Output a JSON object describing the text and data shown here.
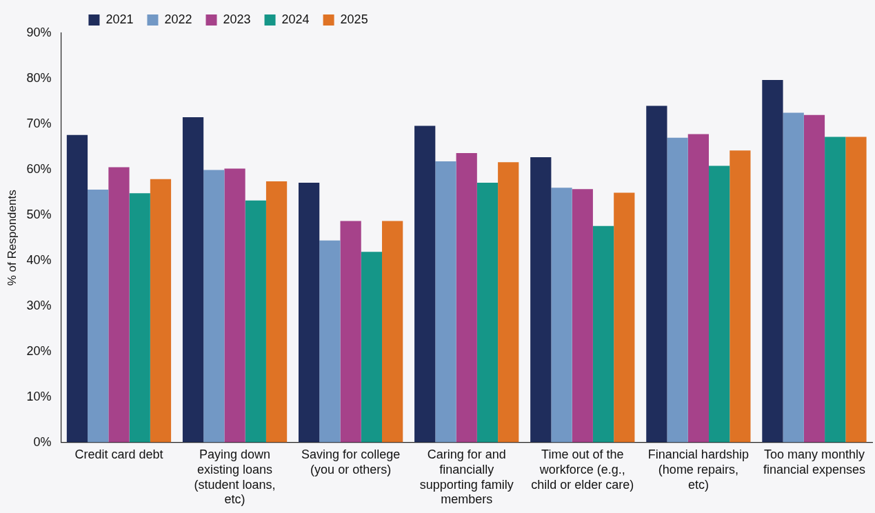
{
  "chart_data": {
    "type": "bar",
    "ylabel": "% of Respondents",
    "categories": [
      "Credit card debt",
      "Paying down existing loans (student loans, etc)",
      "Saving for college (you or others)",
      "Caring for and financially supporting family members",
      "Time out of the workforce (e.g., child or elder care)",
      "Financial hardship (home repairs, etc)",
      "Too many monthly financial expenses"
    ],
    "series": [
      {
        "name": "2021",
        "color": "#1f2d5c",
        "values": [
          67.6,
          71.5,
          57.1,
          69.6,
          62.7,
          74.0,
          79.7
        ]
      },
      {
        "name": "2022",
        "color": "#7298c5",
        "values": [
          55.6,
          59.9,
          44.4,
          61.8,
          56.0,
          67.0,
          72.5
        ]
      },
      {
        "name": "2023",
        "color": "#a6428a",
        "values": [
          60.5,
          60.2,
          48.7,
          63.6,
          55.7,
          67.8,
          72.0
        ]
      },
      {
        "name": "2024",
        "color": "#159688",
        "values": [
          54.8,
          53.2,
          41.9,
          57.1,
          47.6,
          60.8,
          67.2
        ]
      },
      {
        "name": "2025",
        "color": "#df7325",
        "values": [
          57.9,
          57.4,
          48.7,
          61.6,
          54.9,
          64.2,
          67.2
        ]
      }
    ],
    "ylim": [
      0,
      90
    ],
    "yticks": [
      {
        "value": 0,
        "label": "0%"
      },
      {
        "value": 10,
        "label": "10%"
      },
      {
        "value": 20,
        "label": "20%"
      },
      {
        "value": 30,
        "label": "30%"
      },
      {
        "value": 40,
        "label": "40%"
      },
      {
        "value": 50,
        "label": "50%"
      },
      {
        "value": 60,
        "label": "60%"
      },
      {
        "value": 70,
        "label": "70%"
      },
      {
        "value": 80,
        "label": "80%"
      },
      {
        "value": 90,
        "label": "90%"
      }
    ],
    "grid": false,
    "legend": "top left"
  }
}
